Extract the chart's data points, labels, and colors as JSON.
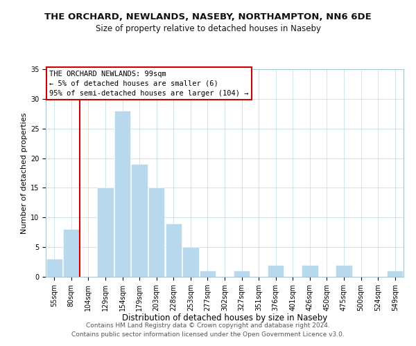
{
  "title": "THE ORCHARD, NEWLANDS, NASEBY, NORTHAMPTON, NN6 6DE",
  "subtitle": "Size of property relative to detached houses in Naseby",
  "xlabel": "Distribution of detached houses by size in Naseby",
  "ylabel": "Number of detached properties",
  "bar_labels": [
    "55sqm",
    "80sqm",
    "104sqm",
    "129sqm",
    "154sqm",
    "179sqm",
    "203sqm",
    "228sqm",
    "253sqm",
    "277sqm",
    "302sqm",
    "327sqm",
    "351sqm",
    "376sqm",
    "401sqm",
    "426sqm",
    "450sqm",
    "475sqm",
    "500sqm",
    "524sqm",
    "549sqm"
  ],
  "bar_values": [
    3,
    8,
    0,
    15,
    28,
    19,
    15,
    9,
    5,
    1,
    0,
    1,
    0,
    2,
    0,
    2,
    0,
    2,
    0,
    0,
    1
  ],
  "bar_color": "#b8d9ed",
  "vline_color": "#cc0000",
  "vline_pos": 2,
  "ylim": [
    0,
    35
  ],
  "yticks": [
    0,
    5,
    10,
    15,
    20,
    25,
    30,
    35
  ],
  "annotation_lines": [
    "THE ORCHARD NEWLANDS: 99sqm",
    "← 5% of detached houses are smaller (6)",
    "95% of semi-detached houses are larger (104) →"
  ],
  "footer_lines": [
    "Contains HM Land Registry data © Crown copyright and database right 2024.",
    "Contains public sector information licensed under the Open Government Licence v3.0."
  ],
  "title_fontsize": 9.5,
  "subtitle_fontsize": 8.5,
  "xlabel_fontsize": 8.5,
  "ylabel_fontsize": 8.0,
  "tick_fontsize": 7.0,
  "annotation_fontsize": 7.5,
  "footer_fontsize": 6.5,
  "grid_color": "#c8dfe8"
}
